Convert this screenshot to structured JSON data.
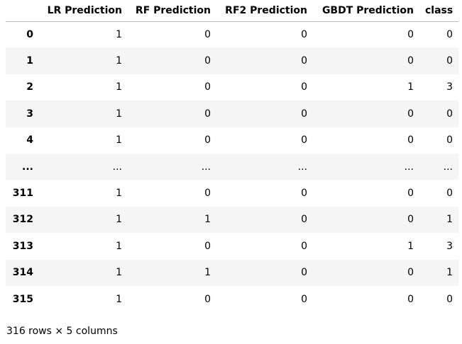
{
  "table": {
    "columns": [
      "LR Prediction",
      "RF Prediction",
      "RF2 Prediction",
      "GBDT Prediction",
      "class"
    ],
    "rows": [
      [
        0,
        1,
        0,
        0,
        0,
        0
      ],
      [
        1,
        1,
        0,
        0,
        0,
        0
      ],
      [
        2,
        1,
        0,
        0,
        1,
        3
      ],
      [
        3,
        1,
        0,
        0,
        0,
        0
      ],
      [
        4,
        1,
        0,
        0,
        0,
        0
      ],
      [
        "...",
        "...",
        "...",
        "...",
        "...",
        "..."
      ],
      [
        311,
        1,
        0,
        0,
        0,
        0
      ],
      [
        312,
        1,
        1,
        0,
        0,
        1
      ],
      [
        313,
        1,
        0,
        0,
        1,
        3
      ],
      [
        314,
        1,
        1,
        0,
        0,
        1
      ],
      [
        315,
        1,
        0,
        0,
        0,
        0
      ]
    ]
  },
  "footer": "316 rows × 5 columns"
}
